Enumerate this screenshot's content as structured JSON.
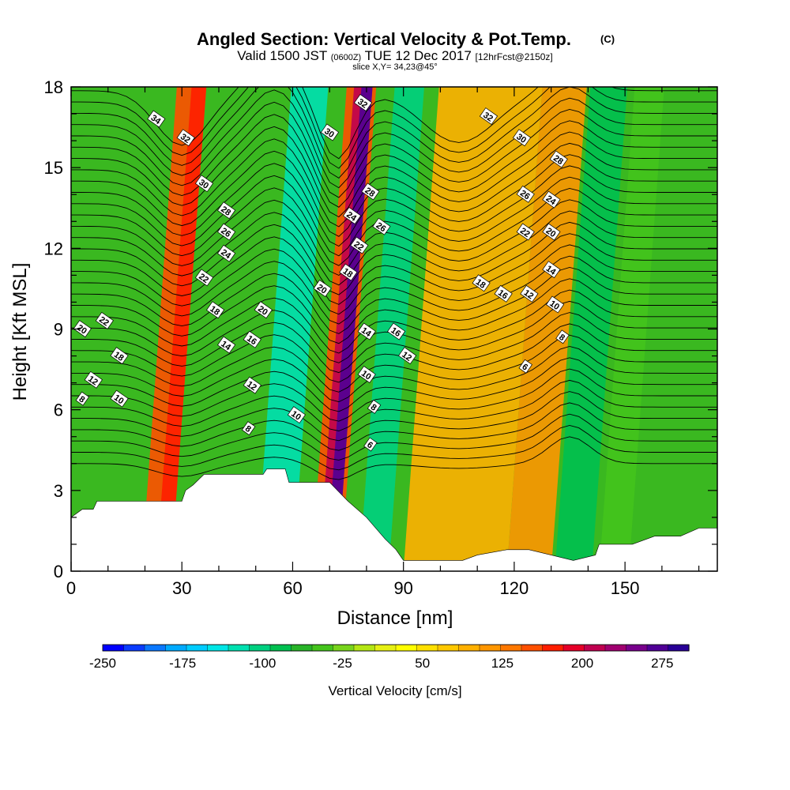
{
  "chart_data": {
    "type": "heatmap",
    "title": "Angled Section: Vertical Velocity & Pot.Temp.",
    "title_unit": "(C)",
    "subtitle": {
      "prefix": "Valid 1500 JST",
      "utc": "(0600Z)",
      "date": "TUE 12 Dec 2017",
      "forecast": "[12hrFcst@2150z]"
    },
    "slice_label": "slice X,Y= 34,23@45°",
    "xlabel": "Distance [nm]",
    "ylabel": "Height [Kft MSL]",
    "xlim": [
      0,
      175
    ],
    "ylim": [
      0,
      18
    ],
    "x_ticks": [
      "0",
      "30",
      "60",
      "90",
      "120",
      "150"
    ],
    "y_ticks": [
      "0",
      "3",
      "6",
      "9",
      "12",
      "15",
      "18"
    ],
    "colorbar": {
      "label": "Vertical Velocity [cm/s]",
      "tick_labels": [
        "-250",
        "-175",
        "-100",
        "-25",
        "50",
        "125",
        "200",
        "275"
      ],
      "range": [
        -250,
        300
      ],
      "step": 25,
      "colors": [
        "#0000ff",
        "#0a3cff",
        "#0a78ff",
        "#00aaff",
        "#00ccff",
        "#00e6e6",
        "#00e0b0",
        "#00d080",
        "#00c050",
        "#28b428",
        "#44c41c",
        "#78d41c",
        "#b4e614",
        "#e6f014",
        "#ffff00",
        "#ffe000",
        "#ffc800",
        "#ffb000",
        "#ff9600",
        "#ff7800",
        "#ff5000",
        "#ff1e00",
        "#e60028",
        "#c00050",
        "#a00070",
        "#78008c",
        "#500096",
        "#280096"
      ]
    },
    "velocity_bands": [
      {
        "x": 0,
        "w": 82
      },
      {
        "x": 19,
        "w": 8,
        "color": "#ff5000"
      },
      {
        "x": 23,
        "w": 4,
        "color": "#ff1e00"
      },
      {
        "x": 50,
        "w": 10,
        "color": "#00e0b0"
      },
      {
        "x": 65,
        "w": 8,
        "color": "#ff5000"
      },
      {
        "x": 67,
        "w": 5,
        "color": "#c00050"
      },
      {
        "x": 69,
        "w": 3,
        "color": "#500096"
      },
      {
        "x": 78,
        "w": 8,
        "color": "#00d080"
      },
      {
        "x": 90,
        "w": 28,
        "color": "#ffb000"
      },
      {
        "x": 118,
        "w": 12,
        "color": "#ff9600"
      },
      {
        "x": 131,
        "w": 10,
        "color": "#00c050"
      },
      {
        "x": 143,
        "w": 8,
        "color": "#44c41c"
      }
    ],
    "terrain_kft": [
      [
        0,
        2
      ],
      [
        3,
        2.3
      ],
      [
        6,
        2.3
      ],
      [
        7,
        2.6
      ],
      [
        30,
        2.6
      ],
      [
        31,
        3.0
      ],
      [
        33,
        3.2
      ],
      [
        36,
        3.6
      ],
      [
        52,
        3.6
      ],
      [
        53,
        3.8
      ],
      [
        58,
        3.8
      ],
      [
        59,
        3.3
      ],
      [
        70,
        3.3
      ],
      [
        75,
        2.6
      ],
      [
        80,
        2.0
      ],
      [
        85,
        1.2
      ],
      [
        88,
        0.8
      ],
      [
        90,
        0.4
      ],
      [
        106,
        0.4
      ],
      [
        110,
        0.6
      ],
      [
        118,
        0.8
      ],
      [
        124,
        0.8
      ],
      [
        130,
        0.6
      ],
      [
        136,
        0.4
      ],
      [
        142,
        0.6
      ],
      [
        143,
        1.0
      ],
      [
        152,
        1.0
      ],
      [
        158,
        1.3
      ],
      [
        165,
        1.3
      ],
      [
        170,
        1.6
      ],
      [
        175,
        1.6
      ]
    ],
    "contour_labels": [
      {
        "text": "34",
        "x": 23,
        "y": 16.8
      },
      {
        "text": "32",
        "x": 31,
        "y": 16.1
      },
      {
        "text": "30",
        "x": 36,
        "y": 14.4
      },
      {
        "text": "28",
        "x": 42,
        "y": 13.4
      },
      {
        "text": "26",
        "x": 42,
        "y": 12.6
      },
      {
        "text": "24",
        "x": 42,
        "y": 11.8
      },
      {
        "text": "22",
        "x": 36,
        "y": 10.9
      },
      {
        "text": "18",
        "x": 39,
        "y": 9.7
      },
      {
        "text": "20",
        "x": 52,
        "y": 9.7
      },
      {
        "text": "14",
        "x": 42,
        "y": 8.4
      },
      {
        "text": "16",
        "x": 49,
        "y": 8.6
      },
      {
        "text": "12",
        "x": 49,
        "y": 6.9
      },
      {
        "text": "8",
        "x": 48,
        "y": 5.3
      },
      {
        "text": "10",
        "x": 61,
        "y": 5.8
      },
      {
        "text": "22",
        "x": 9,
        "y": 9.3
      },
      {
        "text": "20",
        "x": 3,
        "y": 9.0
      },
      {
        "text": "18",
        "x": 13,
        "y": 8.0
      },
      {
        "text": "12",
        "x": 6,
        "y": 7.1
      },
      {
        "text": "10",
        "x": 13,
        "y": 6.4
      },
      {
        "text": "8",
        "x": 3,
        "y": 6.4
      },
      {
        "text": "32",
        "x": 79,
        "y": 17.4
      },
      {
        "text": "30",
        "x": 70,
        "y": 16.3
      },
      {
        "text": "28",
        "x": 81,
        "y": 14.1
      },
      {
        "text": "24",
        "x": 76,
        "y": 13.2
      },
      {
        "text": "26",
        "x": 84,
        "y": 12.8
      },
      {
        "text": "22",
        "x": 78,
        "y": 12.1
      },
      {
        "text": "18",
        "x": 75,
        "y": 11.1
      },
      {
        "text": "20",
        "x": 68,
        "y": 10.5
      },
      {
        "text": "14",
        "x": 80,
        "y": 8.9
      },
      {
        "text": "16",
        "x": 88,
        "y": 8.9
      },
      {
        "text": "12",
        "x": 91,
        "y": 8.0
      },
      {
        "text": "10",
        "x": 80,
        "y": 7.3
      },
      {
        "text": "8",
        "x": 82,
        "y": 6.1
      },
      {
        "text": "6",
        "x": 81,
        "y": 4.7
      },
      {
        "text": "32",
        "x": 113,
        "y": 16.9
      },
      {
        "text": "30",
        "x": 122,
        "y": 16.1
      },
      {
        "text": "28",
        "x": 132,
        "y": 15.3
      },
      {
        "text": "26",
        "x": 123,
        "y": 14.0
      },
      {
        "text": "24",
        "x": 130,
        "y": 13.8
      },
      {
        "text": "22",
        "x": 123,
        "y": 12.6
      },
      {
        "text": "20",
        "x": 130,
        "y": 12.6
      },
      {
        "text": "18",
        "x": 111,
        "y": 10.7
      },
      {
        "text": "16",
        "x": 117,
        "y": 10.3
      },
      {
        "text": "12",
        "x": 124,
        "y": 10.3
      },
      {
        "text": "14",
        "x": 130,
        "y": 11.2
      },
      {
        "text": "10",
        "x": 131,
        "y": 9.9
      },
      {
        "text": "8",
        "x": 133,
        "y": 8.7
      },
      {
        "text": "6",
        "x": 123,
        "y": 7.6
      }
    ]
  }
}
